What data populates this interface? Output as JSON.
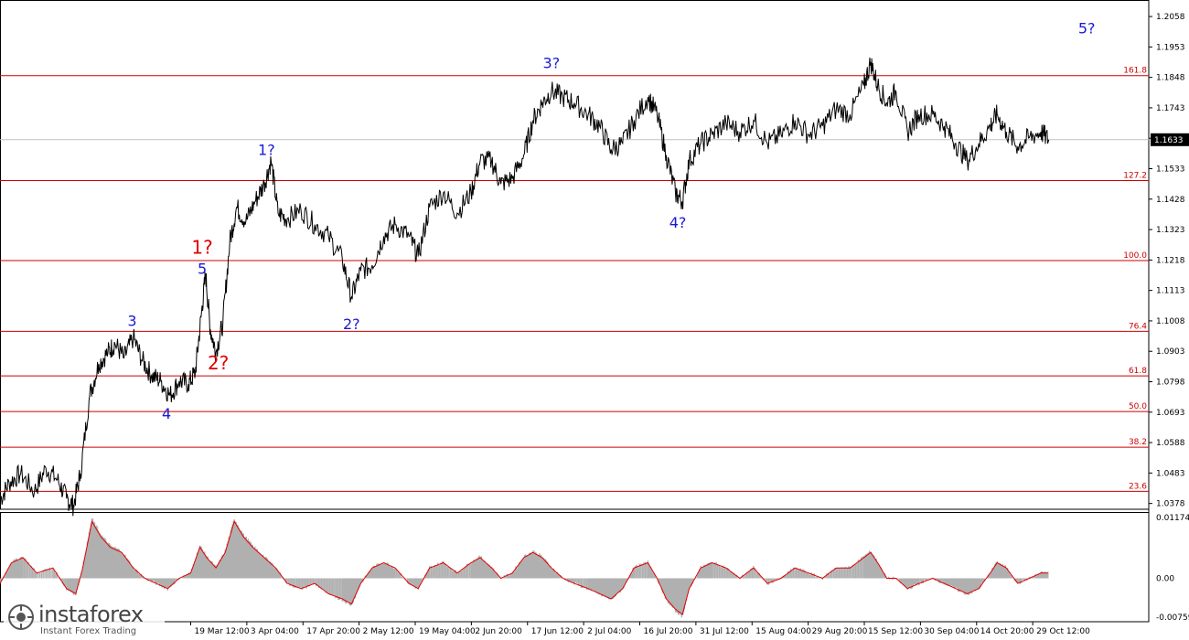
{
  "chart_data": {
    "type": "line",
    "price_axis": {
      "ticks": [
        "1.2058",
        "1.1953",
        "1.1848",
        "1.1743",
        "1.1638",
        "1.1533",
        "1.1428",
        "1.1323",
        "1.1218",
        "1.1113",
        "1.1008",
        "1.0903",
        "1.0798",
        "1.0693",
        "1.0588",
        "1.0483",
        "1.0378"
      ],
      "ylim": [
        1.0358,
        1.2115
      ]
    },
    "time_axis": {
      "ticks": [
        "19 Mar 12:00",
        "3 Apr 04:00",
        "17 Apr 20:00",
        "2 May 12:00",
        "19 May 04:00",
        "2 Jun 20:00",
        "17 Jun 12:00",
        "2 Jul 04:00",
        "16 Jul 20:00",
        "31 Jul 12:00",
        "15 Aug 04:00",
        "29 Aug 20:00",
        "15 Sep 12:00",
        "30 Sep 04:00",
        "14 Oct 20:00",
        "29 Oct 12:00"
      ]
    },
    "current_price": "1.1633",
    "fib_levels": [
      {
        "label": "161.8",
        "price": 1.1854
      },
      {
        "label": "127.2",
        "price": 1.1492
      },
      {
        "label": "100.0",
        "price": 1.1216
      },
      {
        "label": "76.4",
        "price": 1.0972
      },
      {
        "label": "61.8",
        "price": 1.0818
      },
      {
        "label": "50.0",
        "price": 1.0695
      },
      {
        "label": "38.2",
        "price": 1.0572
      },
      {
        "label": "23.6",
        "price": 1.042
      }
    ],
    "wave_labels": [
      {
        "text": "3",
        "color": "blue",
        "date_pos": 0.115,
        "price": 1.099
      },
      {
        "text": "4",
        "color": "blue",
        "date_pos": 0.145,
        "price": 1.067
      },
      {
        "text": "5",
        "color": "blue",
        "date_pos": 0.176,
        "price": 1.117
      },
      {
        "text": "1?",
        "color": "red",
        "date_pos": 0.176,
        "price": 1.124
      },
      {
        "text": "2?",
        "color": "red",
        "date_pos": 0.19,
        "price": 1.084
      },
      {
        "text": "1?",
        "color": "blue",
        "date_pos": 0.232,
        "price": 1.158
      },
      {
        "text": "2?",
        "color": "blue",
        "date_pos": 0.306,
        "price": 1.098
      },
      {
        "text": "3?",
        "color": "blue",
        "date_pos": 0.48,
        "price": 1.188
      },
      {
        "text": "4?",
        "color": "blue",
        "date_pos": 0.59,
        "price": 1.133
      },
      {
        "text": "5?",
        "color": "blue",
        "date_pos": 0.946,
        "price": 1.2
      }
    ],
    "price_path": [
      [
        0.0,
        1.039
      ],
      [
        0.008,
        1.045
      ],
      [
        0.018,
        1.048
      ],
      [
        0.03,
        1.042
      ],
      [
        0.04,
        1.05
      ],
      [
        0.05,
        1.046
      ],
      [
        0.058,
        1.0395
      ],
      [
        0.064,
        1.037
      ],
      [
        0.07,
        1.048
      ],
      [
        0.078,
        1.075
      ],
      [
        0.086,
        1.086
      ],
      [
        0.094,
        1.09
      ],
      [
        0.1,
        1.093
      ],
      [
        0.108,
        1.088
      ],
      [
        0.116,
        1.095
      ],
      [
        0.124,
        1.087
      ],
      [
        0.132,
        1.082
      ],
      [
        0.14,
        1.08
      ],
      [
        0.148,
        1.075
      ],
      [
        0.156,
        1.08
      ],
      [
        0.164,
        1.079
      ],
      [
        0.17,
        1.083
      ],
      [
        0.175,
        1.102
      ],
      [
        0.179,
        1.117
      ],
      [
        0.183,
        1.098
      ],
      [
        0.188,
        1.09
      ],
      [
        0.194,
        1.1
      ],
      [
        0.2,
        1.128
      ],
      [
        0.206,
        1.14
      ],
      [
        0.214,
        1.135
      ],
      [
        0.222,
        1.142
      ],
      [
        0.23,
        1.148
      ],
      [
        0.236,
        1.156
      ],
      [
        0.242,
        1.138
      ],
      [
        0.25,
        1.136
      ],
      [
        0.262,
        1.139
      ],
      [
        0.274,
        1.134
      ],
      [
        0.286,
        1.13
      ],
      [
        0.298,
        1.122
      ],
      [
        0.306,
        1.109
      ],
      [
        0.314,
        1.118
      ],
      [
        0.324,
        1.12
      ],
      [
        0.334,
        1.13
      ],
      [
        0.344,
        1.134
      ],
      [
        0.356,
        1.13
      ],
      [
        0.364,
        1.123
      ],
      [
        0.374,
        1.14
      ],
      [
        0.386,
        1.145
      ],
      [
        0.398,
        1.138
      ],
      [
        0.41,
        1.145
      ],
      [
        0.418,
        1.156
      ],
      [
        0.428,
        1.156
      ],
      [
        0.436,
        1.148
      ],
      [
        0.446,
        1.15
      ],
      [
        0.456,
        1.158
      ],
      [
        0.464,
        1.17
      ],
      [
        0.472,
        1.176
      ],
      [
        0.48,
        1.18
      ],
      [
        0.49,
        1.178
      ],
      [
        0.5,
        1.176
      ],
      [
        0.512,
        1.172
      ],
      [
        0.522,
        1.168
      ],
      [
        0.532,
        1.16
      ],
      [
        0.542,
        1.162
      ],
      [
        0.552,
        1.17
      ],
      [
        0.564,
        1.178
      ],
      [
        0.572,
        1.172
      ],
      [
        0.58,
        1.158
      ],
      [
        0.588,
        1.145
      ],
      [
        0.594,
        1.142
      ],
      [
        0.6,
        1.156
      ],
      [
        0.61,
        1.162
      ],
      [
        0.62,
        1.165
      ],
      [
        0.632,
        1.169
      ],
      [
        0.644,
        1.166
      ],
      [
        0.656,
        1.17
      ],
      [
        0.668,
        1.162
      ],
      [
        0.68,
        1.165
      ],
      [
        0.692,
        1.17
      ],
      [
        0.704,
        1.165
      ],
      [
        0.716,
        1.168
      ],
      [
        0.728,
        1.174
      ],
      [
        0.74,
        1.172
      ],
      [
        0.752,
        1.182
      ],
      [
        0.758,
        1.19
      ],
      [
        0.764,
        1.182
      ],
      [
        0.772,
        1.176
      ],
      [
        0.78,
        1.18
      ],
      [
        0.79,
        1.166
      ],
      [
        0.8,
        1.172
      ],
      [
        0.812,
        1.172
      ],
      [
        0.822,
        1.168
      ],
      [
        0.832,
        1.162
      ],
      [
        0.842,
        1.156
      ],
      [
        0.852,
        1.162
      ],
      [
        0.862,
        1.168
      ],
      [
        0.868,
        1.172
      ],
      [
        0.876,
        1.166
      ],
      [
        0.886,
        1.161
      ],
      [
        0.896,
        1.164
      ],
      [
        0.906,
        1.166
      ],
      [
        0.913,
        1.1633
      ]
    ],
    "indicator": {
      "ticks": [
        "0.01174",
        "0.00",
        "-0.00759"
      ],
      "ylim": [
        -0.008,
        0.0122
      ],
      "values": [
        [
          0.0,
          -0.001
        ],
        [
          0.01,
          0.003
        ],
        [
          0.02,
          0.004
        ],
        [
          0.032,
          0.001
        ],
        [
          0.046,
          0.002
        ],
        [
          0.058,
          -0.002
        ],
        [
          0.066,
          -0.003
        ],
        [
          0.072,
          0.002
        ],
        [
          0.08,
          0.011
        ],
        [
          0.088,
          0.008
        ],
        [
          0.096,
          0.006
        ],
        [
          0.106,
          0.005
        ],
        [
          0.116,
          0.002
        ],
        [
          0.126,
          0.0
        ],
        [
          0.136,
          -0.001
        ],
        [
          0.146,
          -0.002
        ],
        [
          0.156,
          0.0
        ],
        [
          0.166,
          0.001
        ],
        [
          0.174,
          0.006
        ],
        [
          0.18,
          0.004
        ],
        [
          0.188,
          0.002
        ],
        [
          0.196,
          0.005
        ],
        [
          0.204,
          0.011
        ],
        [
          0.212,
          0.008
        ],
        [
          0.22,
          0.006
        ],
        [
          0.23,
          0.004
        ],
        [
          0.24,
          0.002
        ],
        [
          0.25,
          -0.001
        ],
        [
          0.262,
          -0.002
        ],
        [
          0.274,
          -0.001
        ],
        [
          0.286,
          -0.003
        ],
        [
          0.298,
          -0.004
        ],
        [
          0.306,
          -0.005
        ],
        [
          0.314,
          -0.001
        ],
        [
          0.324,
          0.002
        ],
        [
          0.334,
          0.003
        ],
        [
          0.344,
          0.002
        ],
        [
          0.356,
          -0.001
        ],
        [
          0.364,
          -0.002
        ],
        [
          0.374,
          0.002
        ],
        [
          0.386,
          0.003
        ],
        [
          0.398,
          0.001
        ],
        [
          0.41,
          0.003
        ],
        [
          0.418,
          0.004
        ],
        [
          0.428,
          0.002
        ],
        [
          0.436,
          0.0
        ],
        [
          0.446,
          0.001
        ],
        [
          0.456,
          0.004
        ],
        [
          0.464,
          0.005
        ],
        [
          0.472,
          0.004
        ],
        [
          0.48,
          0.002
        ],
        [
          0.49,
          0.0
        ],
        [
          0.5,
          -0.001
        ],
        [
          0.512,
          -0.002
        ],
        [
          0.522,
          -0.003
        ],
        [
          0.532,
          -0.004
        ],
        [
          0.542,
          -0.002
        ],
        [
          0.552,
          0.002
        ],
        [
          0.564,
          0.003
        ],
        [
          0.572,
          0.0
        ],
        [
          0.58,
          -0.004
        ],
        [
          0.588,
          -0.006
        ],
        [
          0.594,
          -0.007
        ],
        [
          0.6,
          -0.002
        ],
        [
          0.61,
          0.002
        ],
        [
          0.62,
          0.003
        ],
        [
          0.632,
          0.002
        ],
        [
          0.644,
          0.0
        ],
        [
          0.656,
          0.002
        ],
        [
          0.668,
          -0.001
        ],
        [
          0.68,
          0.0
        ],
        [
          0.692,
          0.002
        ],
        [
          0.704,
          0.001
        ],
        [
          0.716,
          0.0
        ],
        [
          0.728,
          0.002
        ],
        [
          0.74,
          0.002
        ],
        [
          0.752,
          0.004
        ],
        [
          0.758,
          0.005
        ],
        [
          0.764,
          0.003
        ],
        [
          0.772,
          0.0
        ],
        [
          0.78,
          0.0
        ],
        [
          0.79,
          -0.002
        ],
        [
          0.8,
          -0.001
        ],
        [
          0.812,
          0.0
        ],
        [
          0.822,
          -0.001
        ],
        [
          0.832,
          -0.002
        ],
        [
          0.842,
          -0.003
        ],
        [
          0.852,
          -0.002
        ],
        [
          0.862,
          0.001
        ],
        [
          0.868,
          0.003
        ],
        [
          0.876,
          0.002
        ],
        [
          0.886,
          -0.001
        ],
        [
          0.896,
          0.0
        ],
        [
          0.906,
          0.001
        ],
        [
          0.913,
          0.001
        ]
      ]
    }
  },
  "branding": {
    "name": "instaforex",
    "tagline": "Instant Forex Trading"
  },
  "colors": {
    "fib_line": "#cc0000",
    "wave_blue": "#1a1ad6",
    "wave_red": "#e00000",
    "price_line": "#000000",
    "histogram": "#b0b0b0",
    "signal_line": "#e00000"
  }
}
